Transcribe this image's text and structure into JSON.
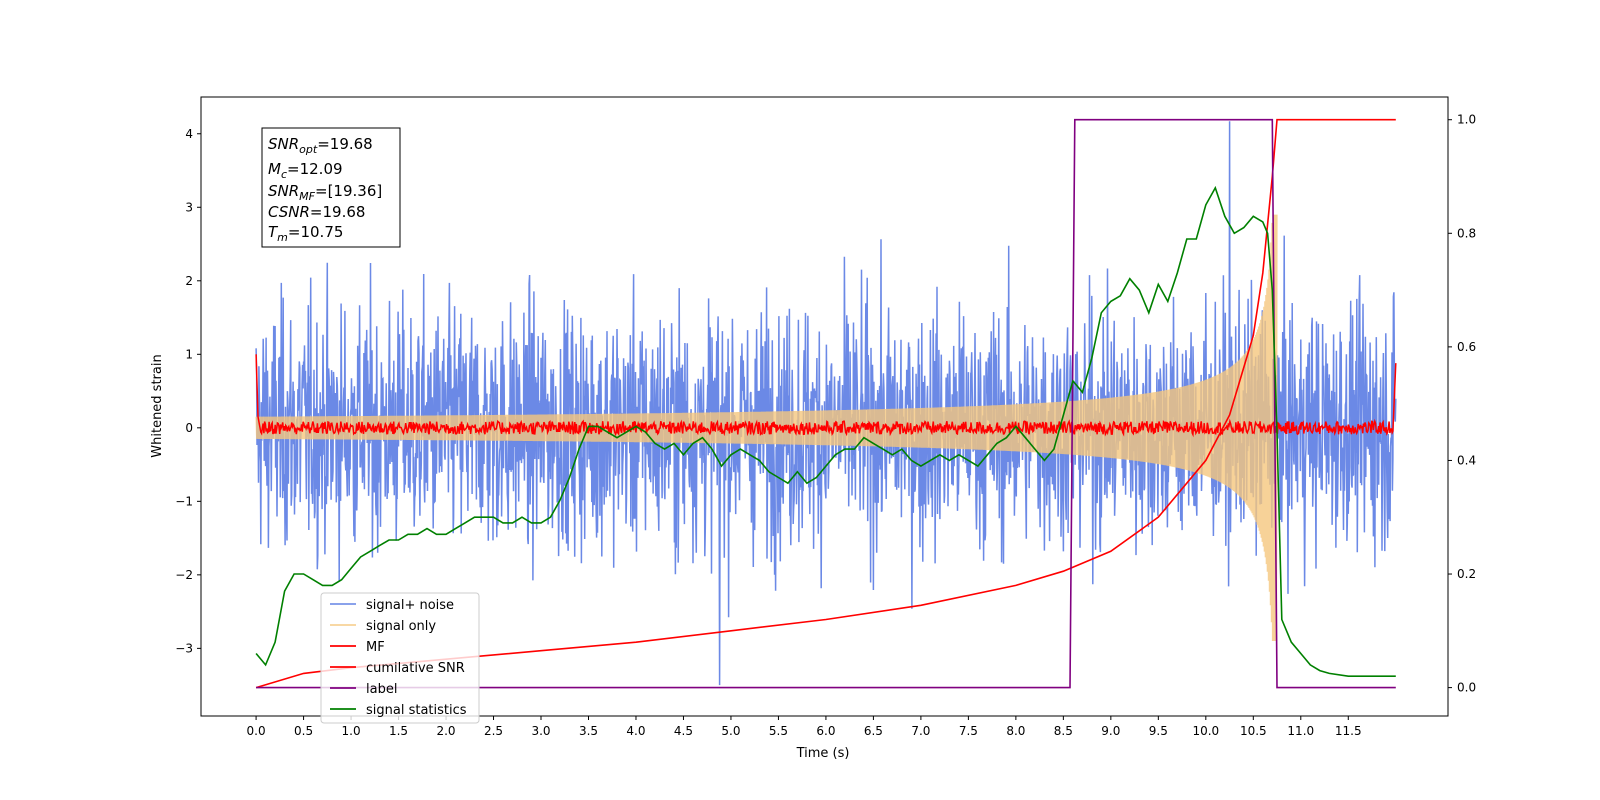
{
  "chart_data": {
    "type": "line",
    "xlabel": "Time (s)",
    "ylabel": "Whitened strain",
    "xlim": [
      -0.58,
      12.55
    ],
    "ylim_left": [
      -3.92,
      4.5
    ],
    "ylim_right": [
      -0.05,
      1.04
    ],
    "x_ticks": [
      "0.0",
      "0.5",
      "1.0",
      "1.5",
      "2.0",
      "2.5",
      "3.0",
      "3.5",
      "4.0",
      "4.5",
      "5.0",
      "5.5",
      "6.0",
      "6.5",
      "7.0",
      "7.5",
      "8.0",
      "8.5",
      "9.0",
      "9.5",
      "10.0",
      "10.5",
      "11.0",
      "11.5"
    ],
    "y_ticks_left": [
      "−3",
      "−2",
      "−1",
      "0",
      "1",
      "2",
      "3",
      "4"
    ],
    "y_ticks_right": [
      "0.0",
      "0.2",
      "0.4",
      "0.6",
      "0.8",
      "1.0"
    ],
    "info_box": {
      "snr_opt_label": "SNR",
      "snr_opt_sub": "opt",
      "snr_opt_value": "=19.68",
      "mc_label": "M",
      "mc_sub": "c",
      "mc_value": "=12.09",
      "snr_mf_label": "SNR",
      "snr_mf_sub": "MF",
      "snr_mf_value": "=[19.36]",
      "csnr_label": "CSNR",
      "csnr_value": "=19.68",
      "tm_label": "T",
      "tm_sub": "m",
      "tm_value": "=10.75"
    },
    "series": [
      {
        "name": "signal+ noise",
        "color": "#6b89e6",
        "axis": "left",
        "description": "whitened noisy strain, approx. unit-variance noise from 0 to 12 s; extreme peak 4.17 at 10.25 s and -3.52 at 4.88 s",
        "envelope": {
          "x": [
            0,
            12
          ],
          "low": -2.6,
          "high": 2.6
        }
      },
      {
        "name": "signal only",
        "color": "#f5c77e",
        "axis": "left",
        "description": "chirp",
        "chirp": {
          "start": 0,
          "merger": 10.75,
          "amp_start": 0.02,
          "amp_peak": 2.9
        }
      },
      {
        "name": "MF",
        "color": "#ff0000",
        "axis": "left",
        "x": [
          0,
          0.02,
          0.05,
          11.97,
          12.0
        ],
        "y": [
          1.0,
          0.15,
          0.0,
          0.0,
          0.88
        ]
      },
      {
        "name": "cumilative SNR",
        "color": "#ff0000",
        "axis": "right",
        "x": [
          0,
          0.5,
          1,
          2,
          3,
          4,
          5,
          6,
          7,
          8,
          8.5,
          9,
          9.5,
          10,
          10.25,
          10.5,
          10.6,
          10.7,
          10.75,
          12.0
        ],
        "y": [
          0.0,
          0.025,
          0.035,
          0.05,
          0.065,
          0.08,
          0.1,
          0.12,
          0.145,
          0.18,
          0.205,
          0.24,
          0.3,
          0.4,
          0.48,
          0.62,
          0.73,
          0.9,
          1.0,
          1.0
        ]
      },
      {
        "name": "label",
        "color": "#800080",
        "axis": "right",
        "x": [
          0,
          8.57,
          8.62,
          10.7,
          10.75,
          12.0
        ],
        "y": [
          0,
          0,
          1,
          1,
          0,
          0
        ]
      },
      {
        "name": "signal statistics",
        "color": "#008000",
        "axis": "right",
        "x": [
          0,
          0.1,
          0.2,
          0.3,
          0.4,
          0.5,
          0.6,
          0.7,
          0.8,
          0.9,
          1.0,
          1.1,
          1.2,
          1.3,
          1.4,
          1.5,
          1.6,
          1.7,
          1.8,
          1.9,
          2.0,
          2.1,
          2.2,
          2.3,
          2.4,
          2.5,
          2.6,
          2.7,
          2.8,
          2.9,
          3.0,
          3.1,
          3.2,
          3.3,
          3.4,
          3.5,
          3.6,
          3.7,
          3.8,
          3.9,
          4.0,
          4.1,
          4.2,
          4.3,
          4.4,
          4.5,
          4.6,
          4.7,
          4.8,
          4.9,
          5.0,
          5.1,
          5.2,
          5.3,
          5.4,
          5.5,
          5.6,
          5.7,
          5.8,
          5.9,
          6.0,
          6.1,
          6.2,
          6.3,
          6.4,
          6.5,
          6.6,
          6.7,
          6.8,
          6.9,
          7.0,
          7.1,
          7.2,
          7.3,
          7.4,
          7.5,
          7.6,
          7.7,
          7.8,
          7.9,
          8.0,
          8.1,
          8.2,
          8.3,
          8.4,
          8.5,
          8.6,
          8.7,
          8.8,
          8.9,
          9.0,
          9.1,
          9.2,
          9.3,
          9.4,
          9.5,
          9.6,
          9.7,
          9.8,
          9.9,
          10.0,
          10.1,
          10.2,
          10.3,
          10.4,
          10.5,
          10.6,
          10.65,
          10.7,
          10.75,
          10.8,
          10.9,
          11.0,
          11.1,
          11.2,
          11.3,
          11.5,
          11.8,
          12.0
        ],
        "y": [
          0.06,
          0.04,
          0.08,
          0.17,
          0.2,
          0.2,
          0.19,
          0.18,
          0.18,
          0.19,
          0.21,
          0.23,
          0.24,
          0.25,
          0.26,
          0.26,
          0.27,
          0.27,
          0.28,
          0.27,
          0.27,
          0.28,
          0.29,
          0.3,
          0.3,
          0.3,
          0.29,
          0.29,
          0.3,
          0.29,
          0.29,
          0.3,
          0.33,
          0.37,
          0.42,
          0.46,
          0.46,
          0.45,
          0.44,
          0.45,
          0.46,
          0.45,
          0.43,
          0.42,
          0.43,
          0.41,
          0.43,
          0.44,
          0.42,
          0.39,
          0.41,
          0.42,
          0.41,
          0.4,
          0.38,
          0.37,
          0.36,
          0.38,
          0.36,
          0.37,
          0.39,
          0.41,
          0.42,
          0.42,
          0.44,
          0.43,
          0.42,
          0.41,
          0.42,
          0.4,
          0.39,
          0.4,
          0.41,
          0.4,
          0.41,
          0.4,
          0.39,
          0.41,
          0.43,
          0.44,
          0.46,
          0.44,
          0.42,
          0.4,
          0.42,
          0.48,
          0.54,
          0.52,
          0.58,
          0.66,
          0.68,
          0.69,
          0.72,
          0.7,
          0.66,
          0.71,
          0.68,
          0.73,
          0.79,
          0.79,
          0.85,
          0.88,
          0.83,
          0.8,
          0.81,
          0.83,
          0.82,
          0.8,
          0.7,
          0.45,
          0.12,
          0.08,
          0.06,
          0.04,
          0.03,
          0.025,
          0.02,
          0.02,
          0.02
        ]
      }
    ],
    "legend": {
      "placement": "lower-left",
      "entries": [
        "signal+ noise",
        "signal only",
        "MF",
        "cumilative SNR",
        "label",
        "signal statistics"
      ]
    }
  }
}
